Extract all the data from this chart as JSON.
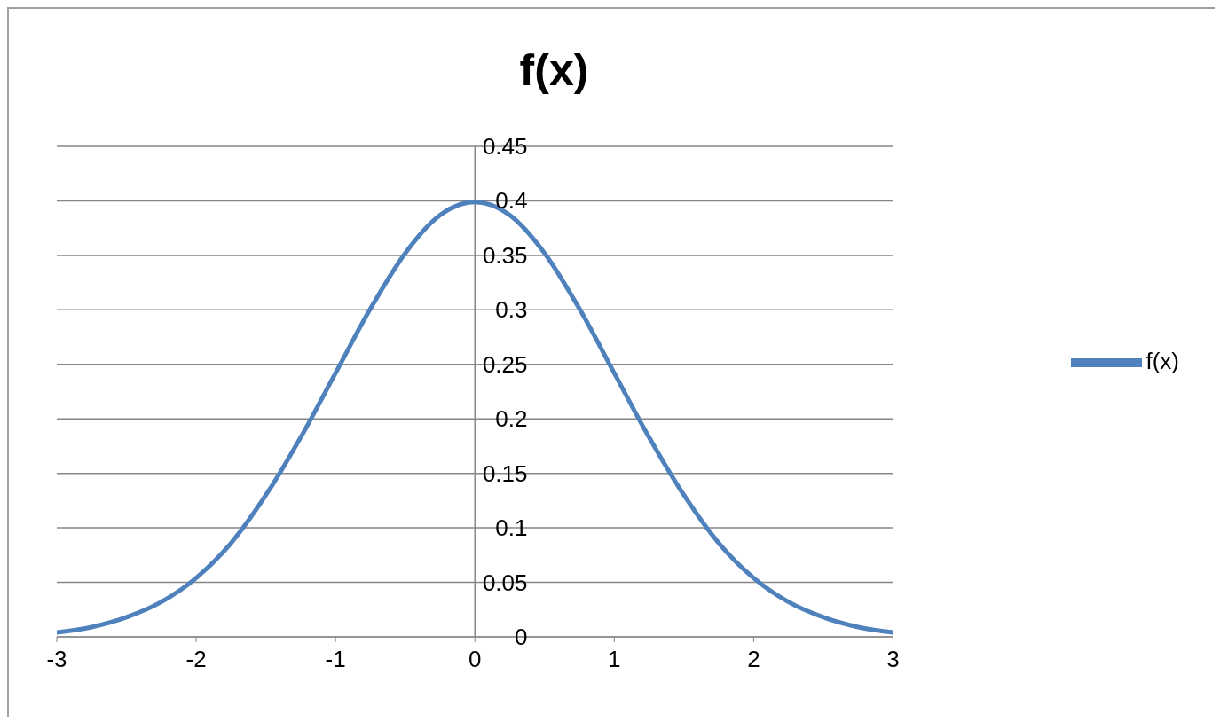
{
  "chart_data": {
    "type": "line",
    "title": "f(x)",
    "x": [
      -3,
      -2.75,
      -2.5,
      -2.25,
      -2,
      -1.75,
      -1.5,
      -1.25,
      -1,
      -0.75,
      -0.5,
      -0.25,
      0,
      0.25,
      0.5,
      0.75,
      1,
      1.25,
      1.5,
      1.75,
      2,
      2.25,
      2.5,
      2.75,
      3
    ],
    "series": [
      {
        "name": "f(x)",
        "color": "#4f81bd",
        "values": [
          0.004,
          0.009,
          0.018,
          0.032,
          0.054,
          0.086,
          0.13,
          0.183,
          0.242,
          0.301,
          0.352,
          0.387,
          0.399,
          0.387,
          0.352,
          0.301,
          0.242,
          0.183,
          0.13,
          0.086,
          0.054,
          0.032,
          0.018,
          0.009,
          0.004
        ]
      }
    ],
    "xlim": [
      -3,
      3
    ],
    "xticks": [
      -3,
      -2,
      -1,
      0,
      1,
      2,
      3
    ],
    "ylim": [
      0,
      0.45
    ],
    "yticks": [
      0,
      0.05,
      0.1,
      0.15,
      0.2,
      0.25,
      0.3,
      0.35,
      0.4,
      0.45
    ],
    "grid": "y",
    "legend": "right",
    "marker": "none",
    "line_style": "solid"
  }
}
